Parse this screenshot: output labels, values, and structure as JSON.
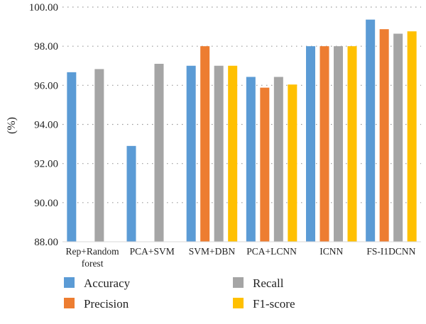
{
  "chart_data": {
    "type": "bar",
    "title": "",
    "xlabel": "",
    "ylabel": "(%)",
    "ylim": [
      88,
      100
    ],
    "yticks": [
      "88.00",
      "90.00",
      "92.00",
      "94.00",
      "96.00",
      "98.00",
      "100.00"
    ],
    "grid": true,
    "legend_position": "bottom",
    "categories": [
      [
        "Rep+Random",
        "forest"
      ],
      [
        "PCA+SVM"
      ],
      [
        "SVM+DBN"
      ],
      [
        "PCA+LCNN"
      ],
      [
        "ICNN"
      ],
      [
        "FS-I1DCNN"
      ]
    ],
    "series": [
      {
        "name": "Accuracy",
        "color": "#5B9BD5",
        "values": [
          96.67,
          92.9,
          97.0,
          96.43,
          98.0,
          99.36
        ]
      },
      {
        "name": "Precision",
        "color": "#ED7D31",
        "values": [
          null,
          null,
          98.0,
          95.88,
          98.0,
          98.87
        ]
      },
      {
        "name": "Recall",
        "color": "#A5A5A5",
        "values": [
          96.83,
          97.1,
          97.0,
          96.43,
          98.0,
          98.64
        ]
      },
      {
        "name": "F1-score",
        "color": "#FFC000",
        "values": [
          null,
          null,
          97.0,
          96.04,
          98.0,
          98.76
        ]
      }
    ]
  }
}
